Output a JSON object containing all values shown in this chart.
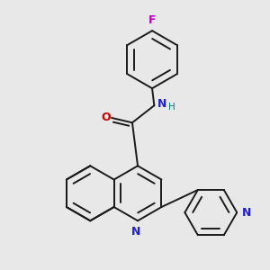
{
  "bg_color": "#e8e8e8",
  "bond_color": "#1a1a1a",
  "N_color": "#2020cc",
  "O_color": "#cc0000",
  "F_color": "#bb00bb",
  "NH_color": "#008080",
  "lw": 1.4,
  "figsize": [
    3.0,
    3.0
  ],
  "dpi": 100,
  "xlim": [
    -1.6,
    1.4
  ],
  "ylim": [
    -1.5,
    2.4
  ]
}
